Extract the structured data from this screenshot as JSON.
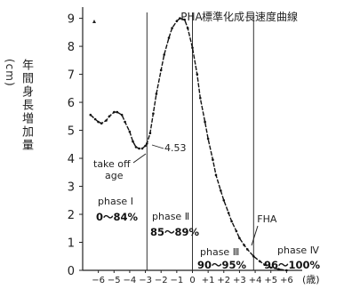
{
  "chart_data": {
    "type": "line",
    "title": "標準化成長速度曲線",
    "ylabel_text": "年間身長増加量",
    "ylabel_unit": "(cm)",
    "xunit": "(歳)",
    "xlim": [
      -7,
      7
    ],
    "ylim": [
      0,
      9.4
    ],
    "x_ticks": [
      {
        "value": -6,
        "label": "−6"
      },
      {
        "value": -5,
        "label": "−5"
      },
      {
        "value": -4,
        "label": "−4"
      },
      {
        "value": -3,
        "label": "−3"
      },
      {
        "value": -2,
        "label": "−2"
      },
      {
        "value": -1,
        "label": "−1"
      },
      {
        "value": 0,
        "label": "0"
      },
      {
        "value": 1,
        "label": "+1"
      },
      {
        "value": 2,
        "label": "+2"
      },
      {
        "value": 3,
        "label": "+3"
      },
      {
        "value": 4,
        "label": "+4"
      },
      {
        "value": 5,
        "label": "+5"
      },
      {
        "value": 6,
        "label": "+6"
      }
    ],
    "y_ticks": [
      0,
      1,
      2,
      3,
      4,
      5,
      6,
      7,
      8,
      9
    ],
    "vlines": [
      {
        "x": -2.9,
        "label": ""
      },
      {
        "x": 0,
        "label": "PHA"
      },
      {
        "x": 3.9,
        "label": "FHA"
      }
    ],
    "take_off_value": "4.53",
    "take_off_label": [
      "take off",
      "age"
    ],
    "phases": [
      {
        "name": "phase Ⅰ",
        "range": "0〜84%"
      },
      {
        "name": "phase Ⅱ",
        "range": "85〜89%"
      },
      {
        "name": "phase Ⅲ",
        "range": "90〜95%"
      },
      {
        "name": "phase Ⅳ",
        "range": "96〜100%"
      }
    ],
    "series": [
      {
        "x": [
          -6.5,
          -6.2,
          -6.0,
          -5.8,
          -5.5,
          -5.3,
          -5.0,
          -4.8,
          -4.5,
          -4.3,
          -4.0,
          -3.8,
          -3.6,
          -3.4,
          -3.2,
          -3.0,
          -2.9,
          -2.7,
          -2.5,
          -2.3,
          -2.0,
          -1.8,
          -1.5,
          -1.3,
          -1.0,
          -0.8,
          -0.5,
          -0.3,
          0.0,
          0.3,
          0.5,
          0.8,
          1.0,
          1.3,
          1.5,
          1.8,
          2.0,
          2.3,
          2.5,
          2.8,
          3.0,
          3.3,
          3.5,
          3.9,
          4.3,
          4.6,
          5.0,
          5.5,
          6.0
        ],
        "y": [
          5.55,
          5.4,
          5.3,
          5.25,
          5.35,
          5.5,
          5.65,
          5.65,
          5.55,
          5.3,
          4.95,
          4.6,
          4.4,
          4.35,
          4.35,
          4.45,
          4.53,
          4.9,
          5.6,
          6.3,
          7.15,
          7.7,
          8.3,
          8.65,
          8.9,
          9.0,
          8.95,
          8.65,
          7.95,
          7.0,
          6.15,
          5.3,
          4.7,
          3.95,
          3.4,
          2.85,
          2.5,
          2.05,
          1.75,
          1.4,
          1.15,
          0.9,
          0.75,
          0.5,
          0.32,
          0.2,
          0.1,
          0.04,
          0.0
        ]
      }
    ]
  }
}
